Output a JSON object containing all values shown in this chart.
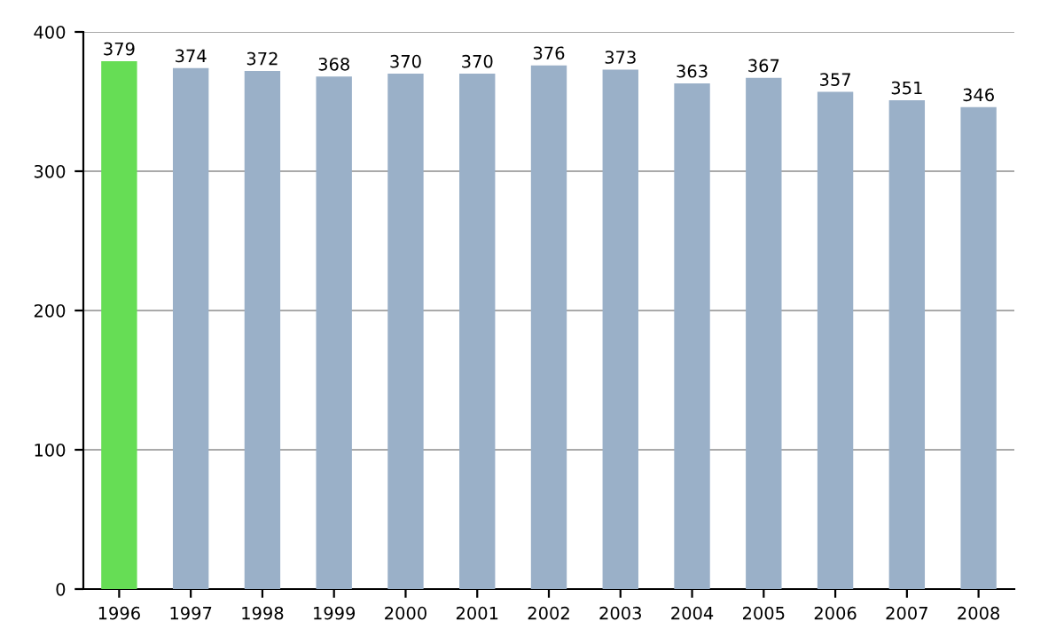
{
  "chart_data": {
    "type": "bar",
    "categories": [
      "1996",
      "1997",
      "1998",
      "1999",
      "2000",
      "2001",
      "2002",
      "2003",
      "2004",
      "2005",
      "2006",
      "2007",
      "2008"
    ],
    "values": [
      379,
      374,
      372,
      368,
      370,
      370,
      376,
      373,
      363,
      367,
      357,
      351,
      346
    ],
    "colors": [
      "#66dd55",
      "#9ab0c8",
      "#9ab0c8",
      "#9ab0c8",
      "#9ab0c8",
      "#9ab0c8",
      "#9ab0c8",
      "#9ab0c8",
      "#9ab0c8",
      "#9ab0c8",
      "#9ab0c8",
      "#9ab0c8",
      "#9ab0c8"
    ],
    "ylim": [
      0,
      400
    ],
    "yticks": [
      0,
      100,
      200,
      300,
      400
    ],
    "grid": "y",
    "data_labels": true
  }
}
